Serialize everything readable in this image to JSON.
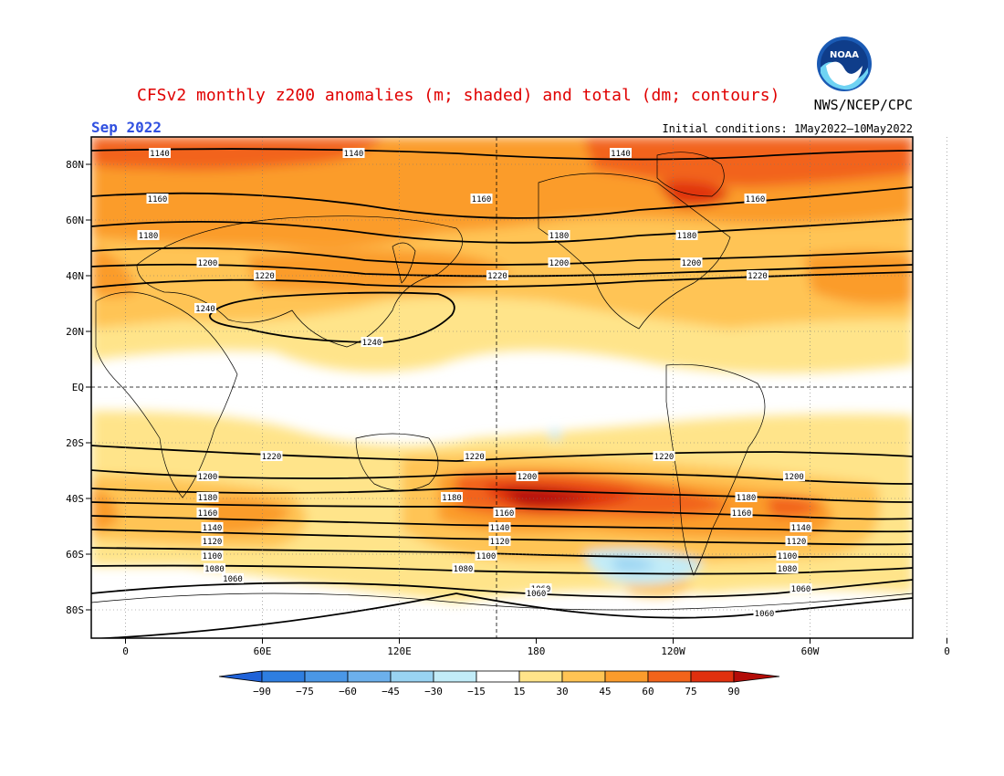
{
  "title": "CFSv2 monthly z200 anomalies (m; shaded) and total (dm; contours)",
  "agency": "NWS/NCEP/CPC",
  "logo_text": "NOAA",
  "month_label": "Sep 2022",
  "initial_conditions": "Initial conditions: 1May2022—10May2022",
  "lat_labels": [
    "80N",
    "60N",
    "40N",
    "20N",
    "EQ",
    "20S",
    "40S",
    "60S",
    "80S"
  ],
  "lon_labels": [
    "0",
    "60E",
    "120E",
    "180",
    "120W",
    "60W",
    "0"
  ],
  "colorbar": {
    "tick_labels": [
      "−90",
      "−75",
      "−60",
      "−45",
      "−30",
      "−15",
      "15",
      "30",
      "45",
      "60",
      "75",
      "90"
    ],
    "colors": [
      "#1f62d8",
      "#2e7ee0",
      "#4a97e6",
      "#6cb0ec",
      "#99d3f2",
      "#c2ecf8",
      "#ffffff",
      "#ffe48a",
      "#ffc454",
      "#fb9c2c",
      "#f2641a",
      "#e0300e",
      "#b30c08"
    ]
  },
  "contour_labels": {
    "north": [
      {
        "lon": 15,
        "text": "1140"
      },
      {
        "lon": 100,
        "text": "1140"
      },
      {
        "lon": 217,
        "text": "1140"
      },
      {
        "lon": 14,
        "text": "1160"
      },
      {
        "lon": 156,
        "text": "1160"
      },
      {
        "lon": 276,
        "text": "1160"
      },
      {
        "lon": 10,
        "text": "1180"
      },
      {
        "lon": 190,
        "text": "1180"
      },
      {
        "lon": 246,
        "text": "1180"
      },
      {
        "lon": 36,
        "text": "1200"
      },
      {
        "lon": 190,
        "text": "1200"
      },
      {
        "lon": 248,
        "text": "1200"
      },
      {
        "lon": 61,
        "text": "1220"
      },
      {
        "lon": 163,
        "text": "1220"
      },
      {
        "lon": 277,
        "text": "1220"
      },
      {
        "lon": 35,
        "text": "1240"
      },
      {
        "lon": 108,
        "text": "1240"
      }
    ],
    "south": [
      {
        "lon": 153,
        "text": "1220"
      },
      {
        "lon": 236,
        "text": "1220"
      },
      {
        "lon": 64,
        "text": "1220"
      },
      {
        "lon": 176,
        "text": "1200"
      },
      {
        "lon": 293,
        "text": "1200"
      },
      {
        "lon": 36,
        "text": "1200"
      },
      {
        "lon": 143,
        "text": "1180"
      },
      {
        "lon": 272,
        "text": "1180"
      },
      {
        "lon": 36,
        "text": "1180"
      },
      {
        "lon": 166,
        "text": "1160"
      },
      {
        "lon": 270,
        "text": "1160"
      },
      {
        "lon": 36,
        "text": "1160"
      },
      {
        "lon": 164,
        "text": "1140"
      },
      {
        "lon": 296,
        "text": "1140"
      },
      {
        "lon": 38,
        "text": "1140"
      },
      {
        "lon": 164,
        "text": "1120"
      },
      {
        "lon": 294,
        "text": "1120"
      },
      {
        "lon": 38,
        "text": "1120"
      },
      {
        "lon": 158,
        "text": "1100"
      },
      {
        "lon": 290,
        "text": "1100"
      },
      {
        "lon": 38,
        "text": "1100"
      },
      {
        "lon": 148,
        "text": "1080"
      },
      {
        "lon": 290,
        "text": "1080"
      },
      {
        "lon": 39,
        "text": "1080"
      },
      {
        "lon": 182,
        "text": "1060"
      },
      {
        "lon": 296,
        "text": "1060"
      },
      {
        "lon": 47,
        "text": "1060"
      },
      {
        "lon": 180,
        "text": "1060"
      },
      {
        "lon": 280,
        "text": "1060"
      }
    ]
  }
}
